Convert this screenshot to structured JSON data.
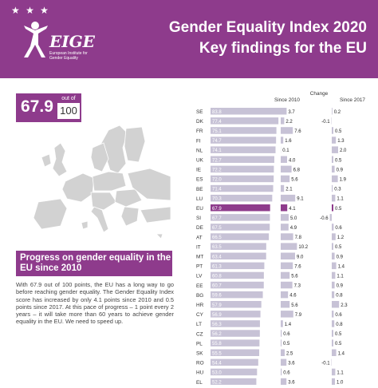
{
  "header": {
    "stars": "★ ★ ★",
    "logo_name": "EIGE",
    "logo_subtitle": "European Institute for Gender Equality",
    "title": "Gender Equality Index 2020",
    "subtitle": "Key findings for the EU"
  },
  "score": {
    "value": "67.9",
    "out_of_label": "out of",
    "max": "100"
  },
  "progress": {
    "heading": "Progress on gender equality in the EU since 2010",
    "body": "With 67.9 out of 100 points, the EU has a long way to go before reaching gender equality. The Gender Equality Index score has increased by only 4.1 points since 2010 and 0.5 points since 2017. At this pace of progress – 1 point every 2 years – it will take more than 60 years to achieve gender equality in the EU. We need to speed up."
  },
  "colors": {
    "accent": "#8e3b8c",
    "bar": "#c7c2d6",
    "highlight": "#8e3b8c"
  },
  "chart_data": {
    "type": "bar",
    "change_label": "Change",
    "col_since_2010": "Since 2010",
    "col_since_2017": "Since 2017",
    "categories": [
      "SE",
      "DK",
      "FR",
      "FI",
      "NL",
      "UK",
      "IE",
      "ES",
      "BE",
      "LU",
      "EU",
      "SI",
      "DE",
      "AT",
      "IT",
      "MT",
      "PT",
      "LV",
      "EE",
      "BG",
      "HR",
      "CY",
      "LT",
      "CZ",
      "PL",
      "SK",
      "RO",
      "HU",
      "EL"
    ],
    "highlight_category": "EU",
    "scores": [
      83.8,
      77.4,
      75.1,
      74.7,
      74.1,
      72.7,
      72.2,
      72.0,
      71.4,
      70.3,
      67.9,
      67.7,
      67.5,
      66.5,
      63.5,
      63.4,
      61.3,
      60.8,
      60.7,
      59.6,
      57.9,
      56.9,
      56.3,
      56.2,
      55.8,
      55.5,
      54.4,
      53.0,
      52.2
    ],
    "change_since_2010": [
      3.7,
      2.2,
      7.6,
      1.6,
      0.1,
      4.0,
      6.8,
      5.6,
      2.1,
      9.1,
      4.1,
      5.0,
      4.9,
      7.8,
      10.2,
      9.0,
      7.6,
      5.6,
      7.3,
      4.6,
      5.6,
      7.9,
      1.4,
      0.6,
      0.5,
      2.5,
      3.6,
      0.6,
      3.6
    ],
    "change_since_2017": [
      0.2,
      -0.1,
      0.5,
      1.3,
      2.0,
      0.5,
      0.9,
      1.9,
      0.3,
      1.1,
      0.5,
      -0.6,
      0.6,
      1.2,
      0.5,
      0.9,
      1.4,
      1.1,
      0.9,
      0.8,
      2.3,
      0.6,
      0.8,
      0.5,
      0.5,
      1.4,
      -0.1,
      1.1,
      1.0
    ],
    "xlim": [
      0,
      100
    ]
  }
}
